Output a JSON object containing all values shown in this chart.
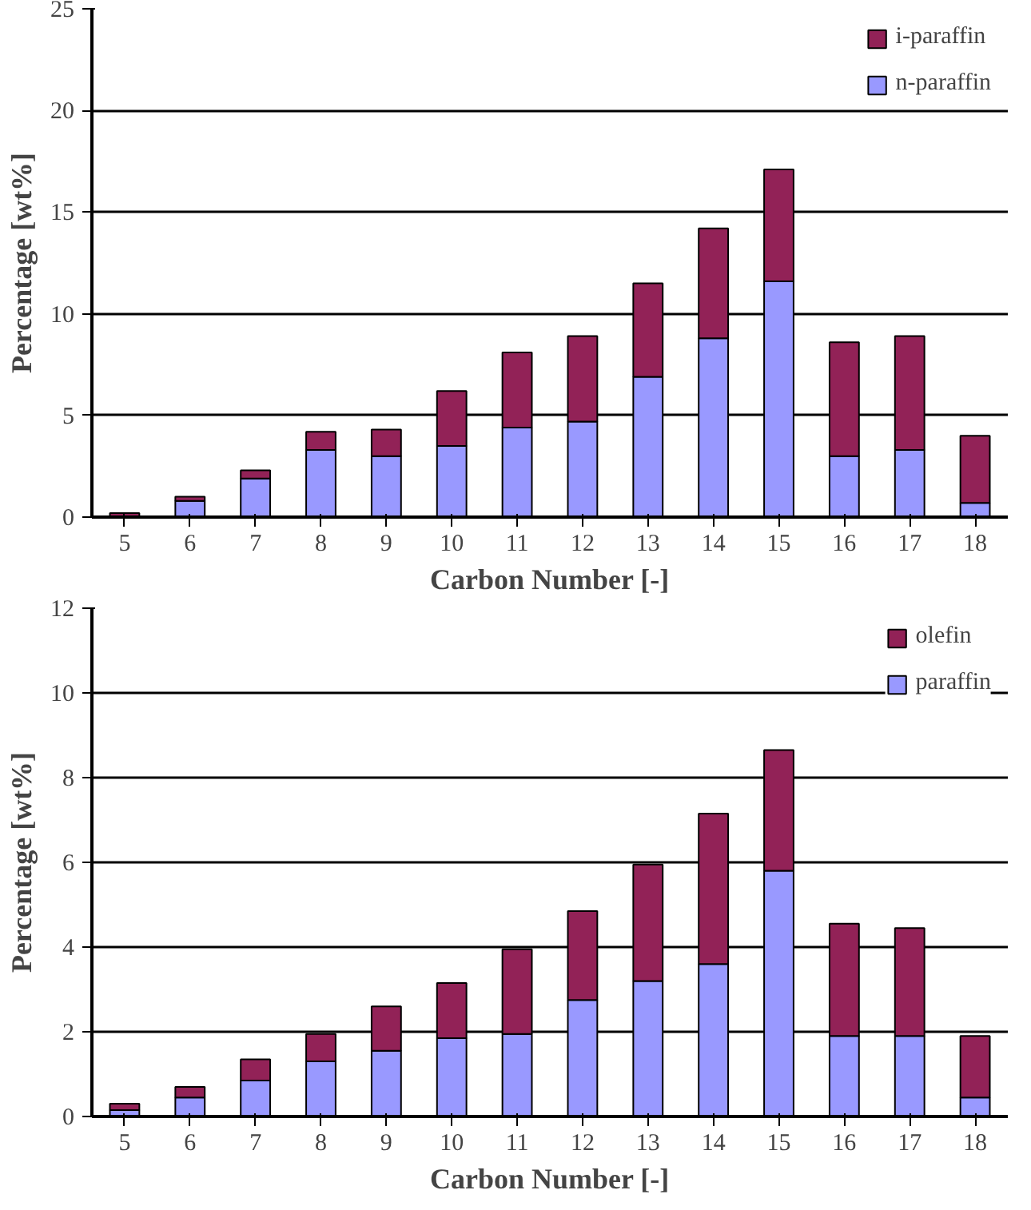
{
  "chart_data": [
    {
      "type": "bar",
      "stacked": true,
      "xlabel": "Carbon Number [-]",
      "ylabel": "Percentage [wt%]",
      "categories": [
        "5",
        "6",
        "7",
        "8",
        "9",
        "10",
        "11",
        "12",
        "13",
        "14",
        "15",
        "16",
        "17",
        "18"
      ],
      "ylim": [
        0,
        25
      ],
      "yticks": [
        0,
        5,
        10,
        15,
        20,
        25
      ],
      "grid": "y",
      "legend": "top right",
      "series": [
        {
          "name": "n-paraffin",
          "color": "#9999ff",
          "values": [
            null,
            0.8,
            1.9,
            3.3,
            3.0,
            3.5,
            4.4,
            4.7,
            6.9,
            8.8,
            11.6,
            3.0,
            3.3,
            0.7
          ]
        },
        {
          "name": "i-paraffin",
          "color": "#922257",
          "values": [
            0.2,
            0.2,
            0.4,
            0.9,
            1.3,
            2.7,
            3.7,
            4.2,
            4.6,
            5.4,
            5.5,
            5.6,
            5.6,
            3.3
          ]
        }
      ]
    },
    {
      "type": "bar",
      "stacked": true,
      "xlabel": "Carbon Number [-]",
      "ylabel": "Percentage [wt%]",
      "categories": [
        "5",
        "6",
        "7",
        "8",
        "9",
        "10",
        "11",
        "12",
        "13",
        "14",
        "15",
        "16",
        "17",
        "18"
      ],
      "ylim": [
        0,
        12
      ],
      "yticks": [
        0,
        2,
        4,
        6,
        8,
        10,
        12
      ],
      "grid": "y",
      "legend": "top right",
      "series": [
        {
          "name": "paraffin",
          "color": "#9999ff",
          "values": [
            0.15,
            0.45,
            0.85,
            1.3,
            1.55,
            1.85,
            1.95,
            2.75,
            3.2,
            3.6,
            5.8,
            1.9,
            1.9,
            0.45
          ]
        },
        {
          "name": "olefin",
          "color": "#922257",
          "values": [
            0.15,
            0.25,
            0.5,
            0.65,
            1.05,
            1.3,
            2.0,
            2.1,
            2.75,
            3.55,
            2.85,
            2.65,
            2.55,
            1.45
          ]
        }
      ]
    }
  ]
}
